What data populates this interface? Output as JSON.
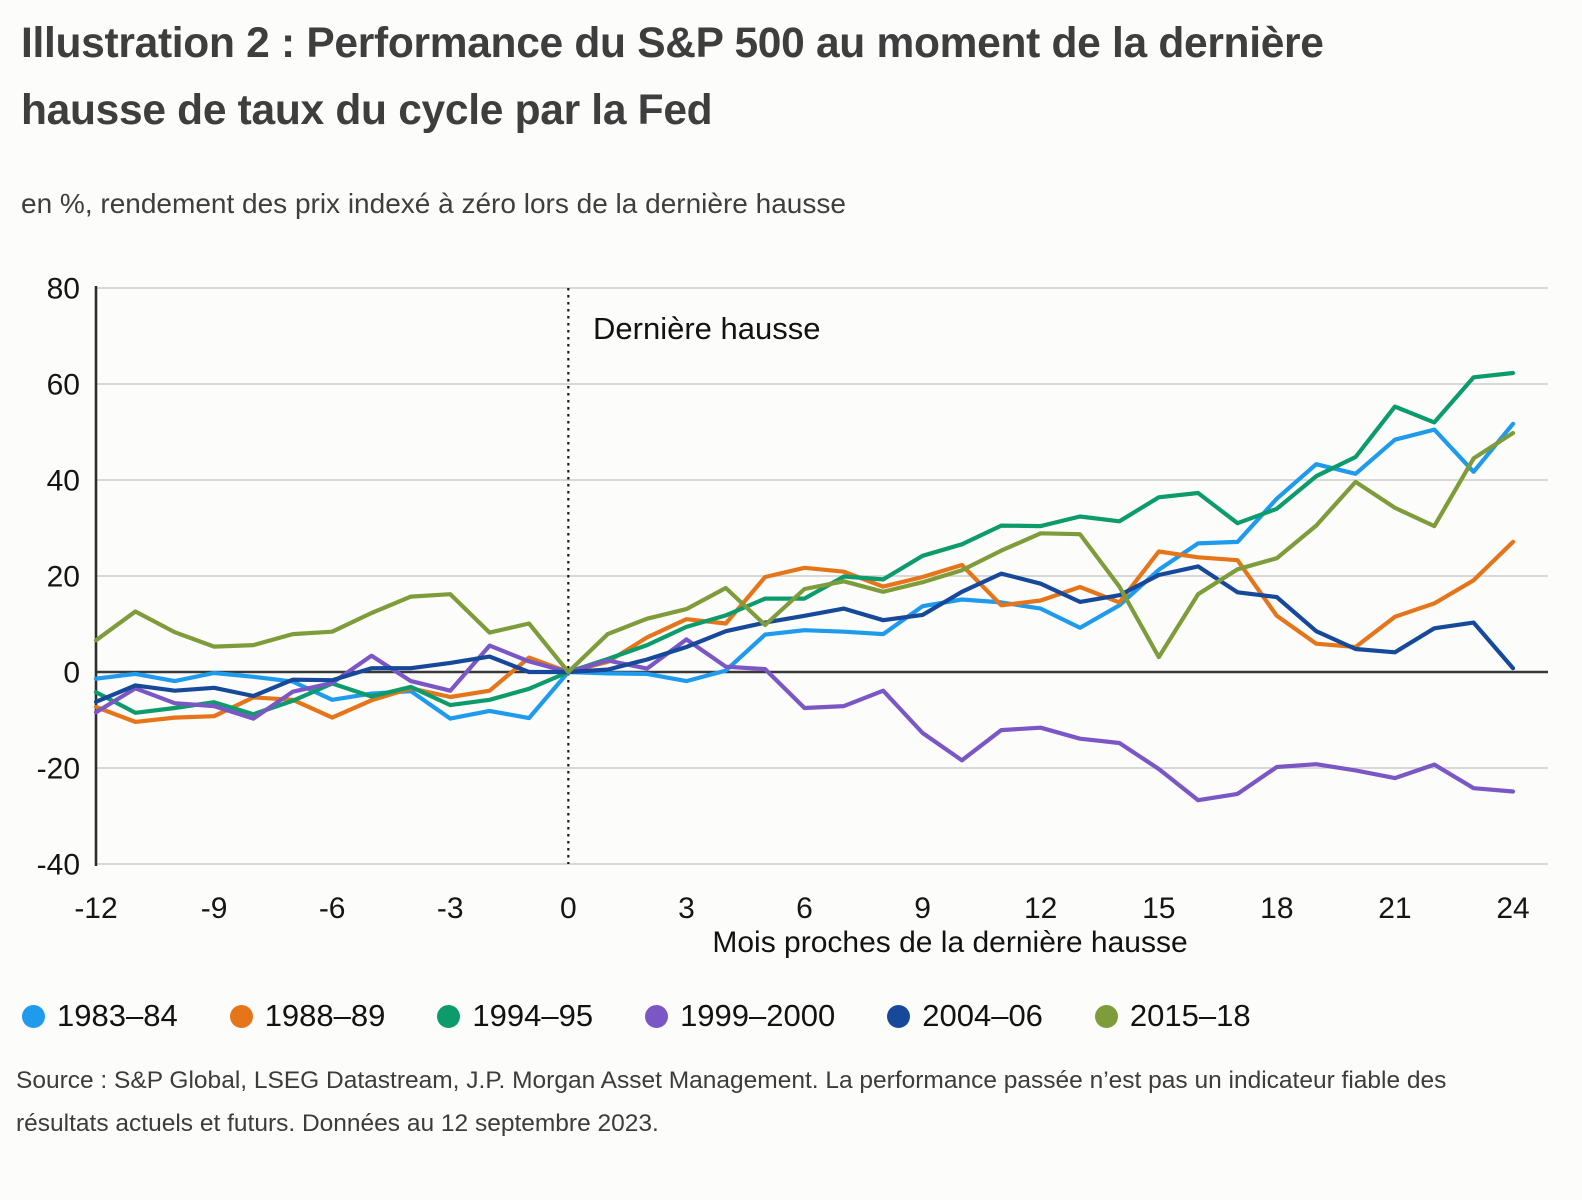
{
  "header": {
    "title": "Illustration 2 : Performance du S&P 500 au moment de la dernière hausse de taux du cycle par la Fed",
    "subtitle": "en %, rendement des prix indexé à zéro lors de la dernière hausse"
  },
  "chart_data": {
    "type": "line",
    "title": "Performance du S&P 500 au moment de la dernière hausse de taux du cycle par la Fed",
    "xlabel": "Mois proches de la dernière hausse",
    "ylabel": "en %, rendement des prix indexé à zéro lors de la dernière hausse",
    "xlim": [
      -12,
      24
    ],
    "ylim": [
      -40,
      80
    ],
    "x_ticks": [
      -12,
      -9,
      -6,
      -3,
      0,
      3,
      6,
      9,
      12,
      15,
      18,
      21,
      24
    ],
    "y_ticks": [
      80,
      60,
      40,
      20,
      0,
      -20,
      -40
    ],
    "grid": "horizontal",
    "legend_position": "bottom",
    "annotation": "Dernière hausse",
    "annotation_x": 0,
    "x": [
      -12,
      -11,
      -10,
      -9,
      -8,
      -7,
      -6,
      -5,
      -4,
      -3,
      -2,
      -1,
      0,
      1,
      2,
      3,
      4,
      5,
      6,
      7,
      8,
      9,
      10,
      11,
      12,
      13,
      14,
      15,
      16,
      17,
      18,
      19,
      20,
      21,
      22,
      23,
      24
    ],
    "series": [
      {
        "name": "1983–84",
        "color": "#1E9BEC",
        "values": [
          -1.4,
          -0.4,
          -1.9,
          -0.2,
          -1.0,
          -2.0,
          -5.8,
          -4.5,
          -4.0,
          -9.7,
          -8.1,
          -9.6,
          0,
          -0.3,
          -0.4,
          -1.9,
          0.3,
          7.8,
          8.7,
          8.4,
          7.9,
          13.7,
          15.1,
          14.5,
          13.2,
          9.2,
          13.9,
          21.3,
          26.8,
          27.1,
          36.1,
          43.3,
          41.3,
          48.4,
          50.5,
          41.7,
          51.7
        ]
      },
      {
        "name": "1988–89",
        "color": "#E6751A",
        "values": [
          -7.3,
          -10.4,
          -9.5,
          -9.2,
          -5.3,
          -5.8,
          -9.5,
          -5.9,
          -3.4,
          -5.2,
          -3.9,
          3.0,
          0,
          2.1,
          7.2,
          11.0,
          10.1,
          19.8,
          21.7,
          20.9,
          17.8,
          19.8,
          22.3,
          13.9,
          14.9,
          17.7,
          14.5,
          25.1,
          23.9,
          23.3,
          11.7,
          5.9,
          5.2,
          11.5,
          14.3,
          19.1,
          27.1
        ]
      },
      {
        "name": "1994–95",
        "color": "#0C9C6C",
        "values": [
          -4.2,
          -8.5,
          -7.5,
          -6.3,
          -8.8,
          -6.0,
          -2.4,
          -5.1,
          -3.1,
          -6.9,
          -5.8,
          -3.5,
          0,
          2.7,
          5.6,
          9.4,
          11.8,
          15.3,
          15.3,
          19.9,
          19.3,
          24.2,
          26.6,
          30.5,
          30.4,
          32.4,
          31.4,
          36.4,
          37.3,
          31.0,
          34.0,
          40.8,
          44.8,
          55.3,
          52.0,
          61.4,
          62.3
        ]
      },
      {
        "name": "1999–2000",
        "color": "#7B57C5",
        "values": [
          -8.4,
          -3.4,
          -6.5,
          -7.1,
          -9.7,
          -4.1,
          -2.3,
          3.4,
          -1.9,
          -3.9,
          5.5,
          2.2,
          0,
          2.4,
          0.7,
          6.8,
          1.1,
          0.6,
          -7.5,
          -7.1,
          -3.9,
          -12.7,
          -18.4,
          -12.1,
          -11.6,
          -13.9,
          -14.8,
          -20.2,
          -26.7,
          -25.4,
          -19.8,
          -19.2,
          -20.5,
          -22.1,
          -19.3,
          -24.2,
          -24.9
        ]
      },
      {
        "name": "2004–06",
        "color": "#17499B",
        "values": [
          -6.2,
          -2.8,
          -3.9,
          -3.3,
          -5.0,
          -1.6,
          -1.7,
          0.8,
          0.8,
          1.9,
          3.2,
          0.0,
          0,
          0.5,
          2.6,
          5.2,
          8.5,
          10.3,
          11.7,
          13.2,
          10.8,
          11.9,
          16.7,
          20.5,
          18.4,
          14.6,
          16.0,
          20.2,
          22.0,
          16.6,
          15.6,
          8.5,
          4.8,
          4.1,
          9.1,
          10.3,
          0.8
        ]
      },
      {
        "name": "2015–18",
        "color": "#7F9C3A",
        "values": [
          6.6,
          12.6,
          8.3,
          5.3,
          5.6,
          7.9,
          8.4,
          12.3,
          15.7,
          16.2,
          8.2,
          10.1,
          0,
          7.9,
          11.1,
          13.1,
          17.5,
          9.8,
          17.3,
          18.9,
          16.7,
          18.7,
          21.2,
          25.3,
          28.9,
          28.7,
          17.8,
          3.1,
          16.2,
          21.4,
          23.7,
          30.5,
          39.6,
          34.2,
          30.4,
          44.5,
          49.8
        ]
      }
    ],
    "colors": {
      "grid": "#cccccc",
      "axis": "#2e2e2e",
      "zero_line": "#39393a",
      "tick_text": "#151515",
      "dotted_line": "#1a1a1a"
    }
  },
  "source": "Source : S&P Global, LSEG Datastream, J.P. Morgan Asset Management. La performance passée n’est pas un indicateur fiable des résultats actuels et futurs. Données au 12 septembre 2023."
}
